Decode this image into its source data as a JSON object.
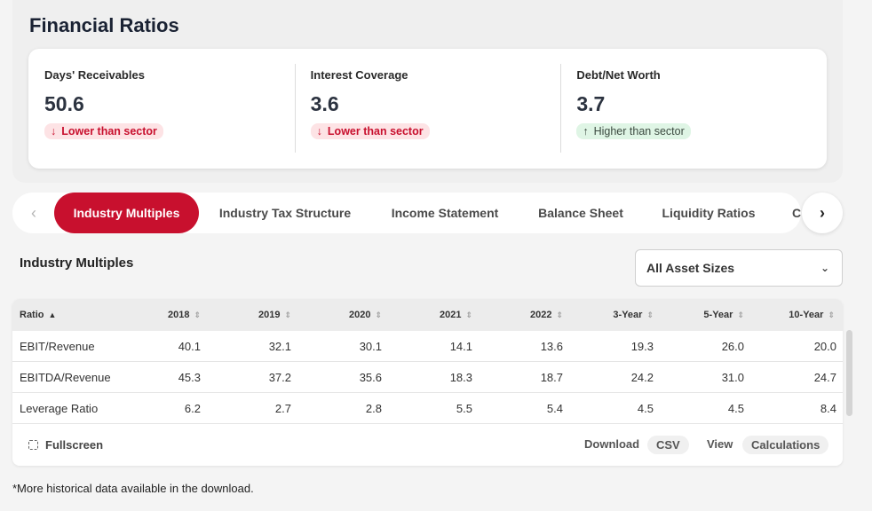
{
  "page": {
    "title": "Financial Ratios"
  },
  "metrics": [
    {
      "label": "Days' Receivables",
      "value": "50.6",
      "badge_icon": "arrow-down-icon",
      "badge_text": "Lower than sector",
      "trend": "lower"
    },
    {
      "label": "Interest Coverage",
      "value": "3.6",
      "badge_icon": "arrow-down-icon",
      "badge_text": "Lower than sector",
      "trend": "lower"
    },
    {
      "label": "Debt/Net Worth",
      "value": "3.7",
      "badge_icon": "arrow-up-icon",
      "badge_text": "Higher than sector",
      "trend": "higher"
    }
  ],
  "tabs": {
    "items": [
      {
        "label": "Industry Multiples",
        "active": true
      },
      {
        "label": "Industry Tax Structure"
      },
      {
        "label": "Income Statement"
      },
      {
        "label": "Balance Sheet"
      },
      {
        "label": "Liquidity Ratios"
      },
      {
        "label": "C"
      }
    ],
    "prev_icon": "chevron-left-icon",
    "next_icon": "chevron-right-icon"
  },
  "section": {
    "title": "Industry Multiples",
    "asset_select": {
      "value": "All Asset Sizes"
    }
  },
  "table": {
    "columns": [
      "Ratio",
      "2018",
      "2019",
      "2020",
      "2021",
      "2022",
      "3-Year",
      "5-Year",
      "10-Year"
    ],
    "rows": [
      {
        "ratio": "EBIT/Revenue",
        "values": [
          "40.1",
          "32.1",
          "30.1",
          "14.1",
          "13.6",
          "19.3",
          "26.0",
          "20.0"
        ]
      },
      {
        "ratio": "EBITDA/Revenue",
        "values": [
          "45.3",
          "37.2",
          "35.6",
          "18.3",
          "18.7",
          "24.2",
          "31.0",
          "24.7"
        ]
      },
      {
        "ratio": "Leverage Ratio",
        "values": [
          "6.2",
          "2.7",
          "2.8",
          "5.5",
          "5.4",
          "4.5",
          "4.5",
          "8.4"
        ]
      }
    ]
  },
  "footer": {
    "fullscreen_label": "Fullscreen",
    "download_label": "Download",
    "csv_label": "CSV",
    "view_label": "View",
    "calculations_label": "Calculations"
  },
  "footnote": "*More historical data available in the download.",
  "colors": {
    "accent": "#c8102e",
    "lower_badge_bg": "#fde3e5",
    "higher_badge_bg": "#dff5e5"
  }
}
